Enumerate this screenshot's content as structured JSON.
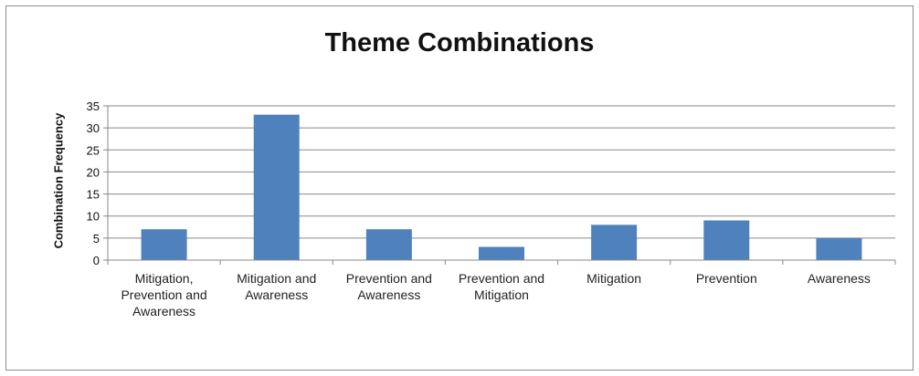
{
  "chart_data": {
    "type": "bar",
    "title": "Theme Combinations",
    "xlabel": "",
    "ylabel": "Combination Frequency",
    "categories": [
      "Mitigation, Prevention and Awareness",
      "Mitigation and Awareness",
      "Prevention and Awareness",
      "Prevention and Mitigation",
      "Mitigation",
      "Prevention",
      "Awareness"
    ],
    "values": [
      7,
      33,
      7,
      3,
      8,
      9,
      5
    ],
    "ylim": [
      0,
      35
    ],
    "yticks": [
      0,
      5,
      10,
      15,
      20,
      25,
      30,
      35
    ],
    "grid": true,
    "legend": "none",
    "bar_color": "#4f81bd"
  }
}
